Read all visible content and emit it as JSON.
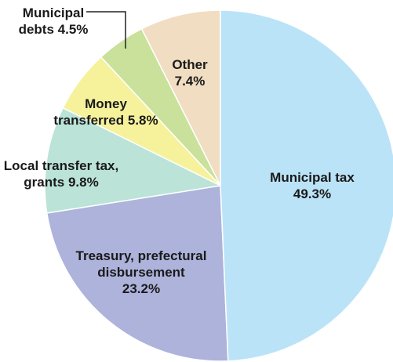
{
  "chart_data": {
    "type": "pie",
    "categories": [
      "Municipal tax",
      "Treasury, prefectural disbursement",
      "Local transfer tax, grants",
      "Money transferred",
      "Municipal debts",
      "Other"
    ],
    "values": [
      49.3,
      23.2,
      9.8,
      5.8,
      4.5,
      7.4
    ],
    "value_labels": [
      "49.3%",
      "23.2%",
      "9.8%",
      "5.8%",
      "4.5%",
      "7.4%"
    ],
    "colors": [
      "#bae3f8",
      "#aeb3dc",
      "#bbe3d8",
      "#f6f29c",
      "#c9e19b",
      "#f1ddc1"
    ]
  }
}
